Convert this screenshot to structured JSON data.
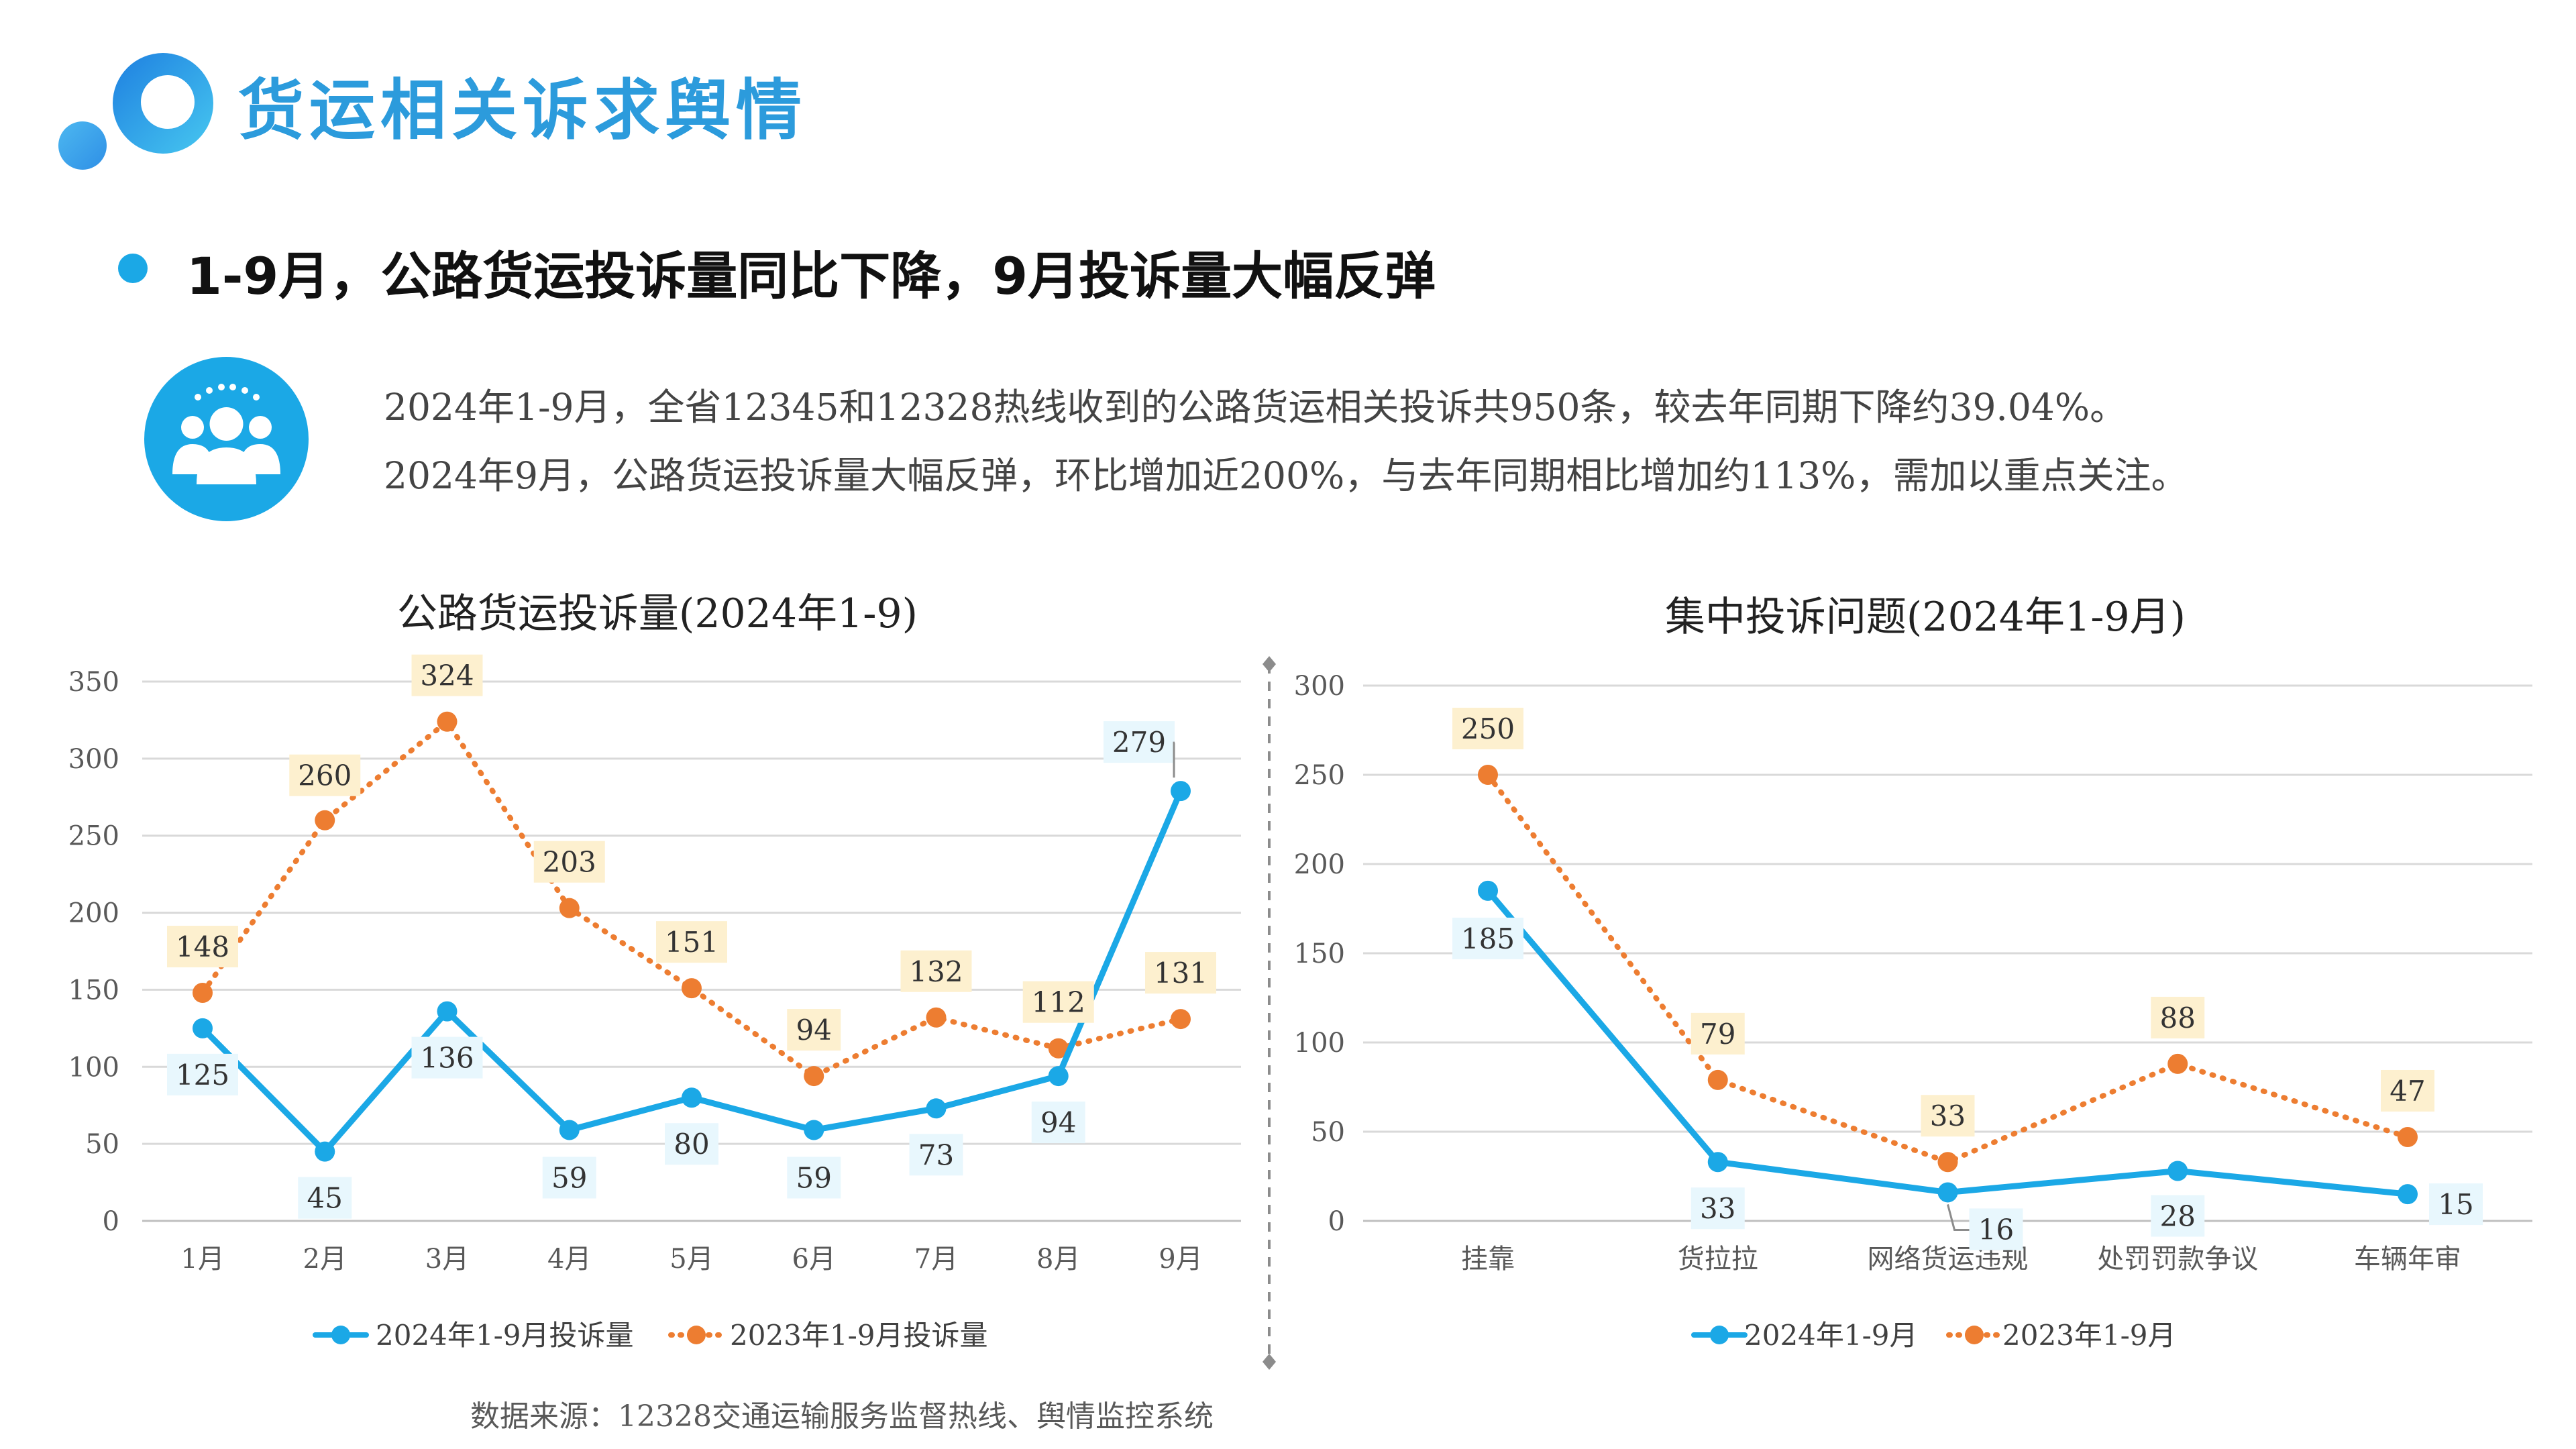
{
  "page": {
    "title": "货运相关诉求舆情",
    "headline": "1-9月，公路货运投诉量同比下降，9月投诉量大幅反弹",
    "summary_line1": "2024年1-9月，全省12345和12328热线收到的公路货运相关投诉共950条，较去年同期下降约39.04%。",
    "summary_line2": "2024年9月，公路货运投诉量大幅反弹，环比增加近200%，与去年同期相比增加约113%，需加以重点关注。",
    "source": "数据来源：12328交通运输服务监督热线、舆情监控系统"
  },
  "icons": {
    "logo": "brand-ring-logo-icon",
    "people": "user-group-icon"
  },
  "chart_data": [
    {
      "type": "line",
      "title": "公路货运投诉量(2024年1-9)",
      "categories": [
        "1月",
        "2月",
        "3月",
        "4月",
        "5月",
        "6月",
        "7月",
        "8月",
        "9月"
      ],
      "ylim": [
        0,
        350
      ],
      "yticks": [
        0,
        50,
        100,
        150,
        200,
        250,
        300,
        350
      ],
      "grid": true,
      "legend_position": "bottom",
      "series": [
        {
          "name": "2024年1-9月投诉量",
          "values": [
            125,
            45,
            136,
            59,
            80,
            59,
            73,
            94,
            279
          ],
          "color": "#1ba8e6",
          "style": "solid"
        },
        {
          "name": "2023年1-9月投诉量",
          "values": [
            148,
            260,
            324,
            203,
            151,
            94,
            132,
            112,
            131
          ],
          "color": "#ed7d31",
          "style": "dotted"
        }
      ]
    },
    {
      "type": "line",
      "title": "集中投诉问题(2024年1-9月)",
      "categories": [
        "挂靠",
        "货拉拉",
        "网络货运违规",
        "处罚罚款争议",
        "车辆年审"
      ],
      "ylim": [
        0,
        300
      ],
      "yticks": [
        0,
        50,
        100,
        150,
        200,
        250,
        300
      ],
      "grid": true,
      "legend_position": "bottom",
      "series": [
        {
          "name": "2024年1-9月",
          "values": [
            185,
            33,
            16,
            28,
            15
          ],
          "color": "#1ba8e6",
          "style": "solid"
        },
        {
          "name": "2023年1-9月",
          "values": [
            250,
            79,
            33,
            88,
            47
          ],
          "color": "#ed7d31",
          "style": "dotted"
        }
      ]
    }
  ],
  "colors": {
    "accent": "#1ba8e6",
    "title_blue": "#2c9bdc",
    "series_2024": "#1ba8e6",
    "series_2023": "#ed7d31",
    "label_bg_2024": "#e8f7fd",
    "label_bg_2023": "#fdf0cf"
  }
}
